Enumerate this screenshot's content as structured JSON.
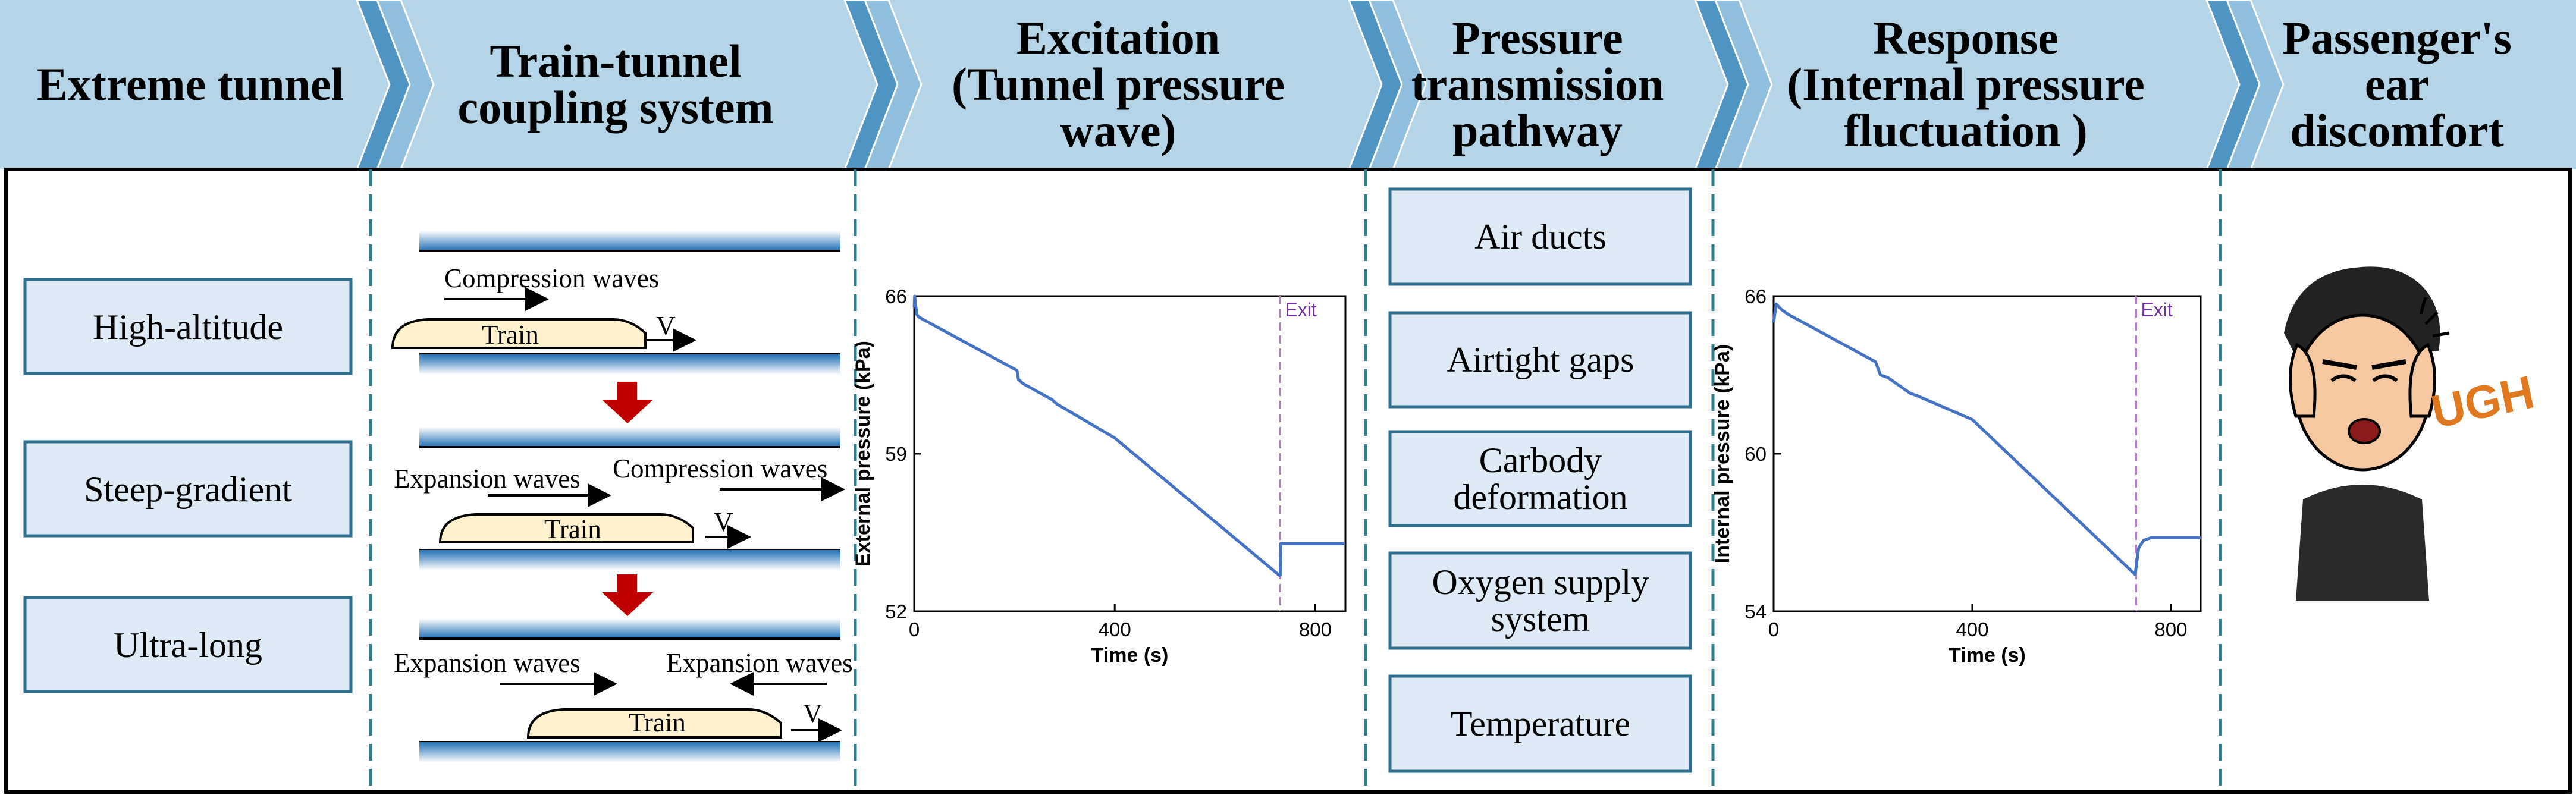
{
  "colors": {
    "header_bg": "#b4d4e8",
    "box_fill": "#deebf7",
    "box_stroke": "#2e6e8e",
    "divider": "#2e7d8c",
    "curve": "#4472c4",
    "arrow_red": "#c00000",
    "train_fill": "#fff2cc",
    "exit_line": "#b07cc6"
  },
  "headers": [
    {
      "lines": [
        "Extreme tunnel"
      ]
    },
    {
      "lines": [
        "Train-tunnel",
        "coupling system"
      ]
    },
    {
      "lines": [
        "Excitation",
        "(Tunnel pressure",
        "wave)"
      ]
    },
    {
      "lines": [
        "Pressure",
        "transmission",
        "pathway"
      ]
    },
    {
      "lines": [
        "Response",
        "(Internal pressure",
        "fluctuation )"
      ]
    },
    {
      "lines": [
        "Passenger's",
        "ear",
        "discomfort"
      ]
    }
  ],
  "tunnel_types": [
    "High-altitude",
    "Steep-gradient",
    "Ultra-long"
  ],
  "coupling": {
    "stage1": {
      "labels": [
        "Compression waves"
      ],
      "train": "Train",
      "v": "V"
    },
    "stage2": {
      "labels": [
        "Expansion waves",
        "Compression waves"
      ],
      "train": "Train",
      "v": "V"
    },
    "stage3": {
      "labels": [
        "Expansion waves",
        "Expansion waves"
      ],
      "train": "Train",
      "v": "V"
    }
  },
  "pathways": [
    {
      "lines": [
        "Air ducts"
      ]
    },
    {
      "lines": [
        "Airtight gaps"
      ]
    },
    {
      "lines": [
        "Carbody",
        "deformation"
      ]
    },
    {
      "lines": [
        "Oxygen supply",
        "system"
      ]
    },
    {
      "lines": [
        "Temperature"
      ]
    }
  ],
  "face_text": "UGH",
  "chart_data": [
    {
      "type": "line",
      "title": "",
      "xlabel": "Time (s)",
      "ylabel": "External pressure (kPa)",
      "xlim": [
        0,
        860
      ],
      "ylim": [
        52,
        66
      ],
      "xticks": [
        0,
        400,
        800
      ],
      "yticks": [
        52,
        59,
        66
      ],
      "exit_time": 730,
      "exit_label": "Exit",
      "series": [
        {
          "name": "External pressure",
          "x": [
            0,
            1,
            3,
            5,
            8,
            15,
            205,
            208,
            218,
            275,
            285,
            400,
            728,
            730,
            731,
            733,
            860
          ],
          "y": [
            65.5,
            66,
            65.6,
            65.2,
            65.1,
            65.0,
            62.7,
            62.3,
            62.1,
            61.4,
            61.2,
            59.7,
            53.6,
            53.6,
            55.0,
            55.0,
            55.0
          ]
        }
      ]
    },
    {
      "type": "line",
      "title": "",
      "xlabel": "Time (s)",
      "ylabel": "Internal pressure (kPa)",
      "xlim": [
        0,
        860
      ],
      "ylim": [
        54,
        66
      ],
      "xticks": [
        0,
        400,
        800
      ],
      "yticks": [
        54,
        60,
        66
      ],
      "exit_time": 730,
      "exit_label": "Exit",
      "series": [
        {
          "name": "Internal pressure",
          "x": [
            0,
            5,
            15,
            30,
            205,
            215,
            230,
            275,
            290,
            400,
            728,
            735,
            745,
            760,
            800,
            860
          ],
          "y": [
            65.0,
            65.7,
            65.5,
            65.3,
            63.5,
            63.0,
            62.9,
            62.3,
            62.2,
            61.3,
            55.4,
            56.4,
            56.7,
            56.8,
            56.8,
            56.8
          ]
        }
      ]
    }
  ]
}
